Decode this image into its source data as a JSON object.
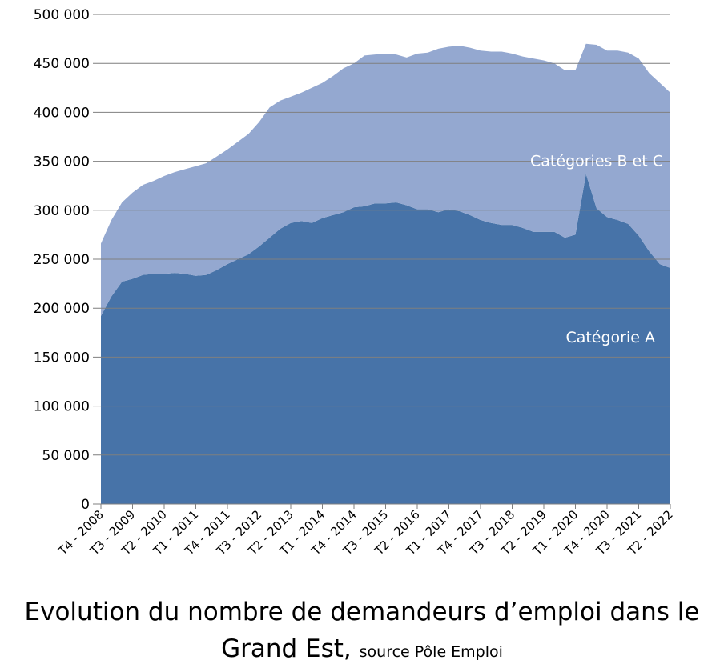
{
  "chart_data": {
    "type": "stacked_area",
    "title": "Evolution du nombre de demandeurs d’emploi dans le Grand Est,",
    "subtitle": "source Pôle Emploi",
    "annotations": [
      "Catégories B et C",
      "Catégorie A"
    ],
    "categories": [
      "T4 - 2008",
      null,
      null,
      "T3 - 2009",
      null,
      null,
      "T2 - 2010",
      null,
      null,
      "T1 - 2011",
      null,
      null,
      "T4 - 2011",
      null,
      null,
      "T3 - 2012",
      null,
      null,
      "T2 - 2013",
      null,
      null,
      "T1 - 2014",
      null,
      null,
      "T4 - 2014",
      null,
      null,
      "T3 - 2015",
      null,
      null,
      "T2 - 2016",
      null,
      null,
      "T1 - 2017",
      null,
      null,
      "T4 - 2017",
      null,
      null,
      "T3 - 2018",
      null,
      null,
      "T2 - 2019",
      null,
      null,
      "T1 - 2020",
      null,
      null,
      "T4 - 2020",
      null,
      null,
      "T3 - 2021",
      null,
      null,
      "T2 - 2022"
    ],
    "series": [
      {
        "name": "Catégorie A",
        "color": "#4773a8",
        "values": [
          192000,
          212000,
          227000,
          230000,
          234000,
          235000,
          235000,
          236000,
          235000,
          233000,
          234000,
          239000,
          245000,
          250000,
          255000,
          263000,
          272000,
          281000,
          287000,
          289000,
          287000,
          292000,
          295000,
          298000,
          303000,
          304000,
          307000,
          307000,
          308000,
          305000,
          301000,
          301000,
          298000,
          301000,
          299000,
          295000,
          290000,
          287000,
          285000,
          285000,
          282000,
          278000,
          278000,
          278000,
          272000,
          275000,
          337000,
          302000,
          293000,
          290000,
          286000,
          274000,
          258000,
          245000,
          241000
        ]
      },
      {
        "name": "Catégories B et C",
        "color": "#94a8d0",
        "values": [
          74000,
          78000,
          81000,
          88000,
          92000,
          95000,
          100000,
          103000,
          107000,
          112000,
          114000,
          116000,
          117000,
          120000,
          123000,
          127000,
          133000,
          131000,
          129000,
          131000,
          138000,
          138000,
          142000,
          147000,
          147000,
          154000,
          152000,
          153000,
          151000,
          151000,
          159000,
          160000,
          167000,
          166000,
          169000,
          171000,
          173000,
          175000,
          177000,
          175000,
          175000,
          177000,
          175000,
          172000,
          171000,
          168000,
          133000,
          167000,
          170000,
          173000,
          175000,
          181000,
          182000,
          185000,
          179000
        ]
      }
    ],
    "ylim": [
      0,
      500000
    ],
    "yticks": [
      0,
      {
        "value": 50000,
        "label": "50 000"
      },
      {
        "value": 100000,
        "label": "100 000"
      },
      {
        "value": 150000,
        "label": "150 000"
      },
      {
        "value": 200000,
        "label": "200 000"
      },
      {
        "value": 250000,
        "label": "250 000"
      },
      {
        "value": 300000,
        "label": "300 000"
      },
      {
        "value": 350000,
        "label": "350 000"
      },
      {
        "value": 400000,
        "label": "400 000"
      },
      {
        "value": 450000,
        "label": "450 000"
      },
      {
        "value": 500000,
        "label": "500 000"
      }
    ],
    "grid": true
  }
}
